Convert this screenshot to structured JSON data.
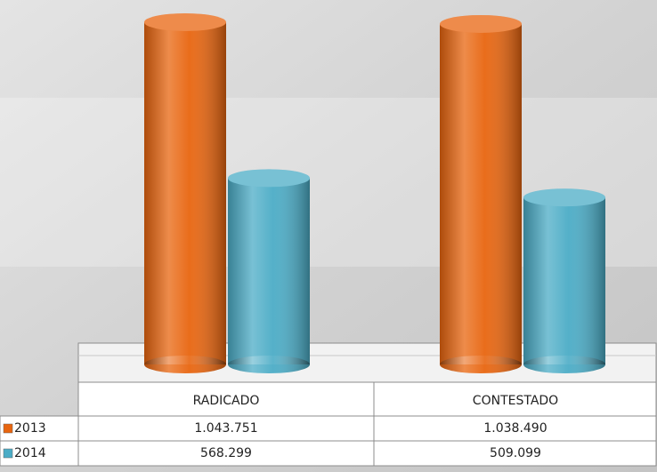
{
  "chart_data": {
    "type": "bar",
    "categories": [
      "RADICADO",
      "CONTESTADO"
    ],
    "series": [
      {
        "name": "2013",
        "color": "#e8650f",
        "values": [
          1043751,
          1038490
        ],
        "value_labels": [
          "1.043.751",
          "1.038.490"
        ]
      },
      {
        "name": "2014",
        "color": "#4bacc6",
        "values": [
          568299,
          509099
        ],
        "value_labels": [
          "568.299",
          "509.099"
        ]
      }
    ]
  }
}
